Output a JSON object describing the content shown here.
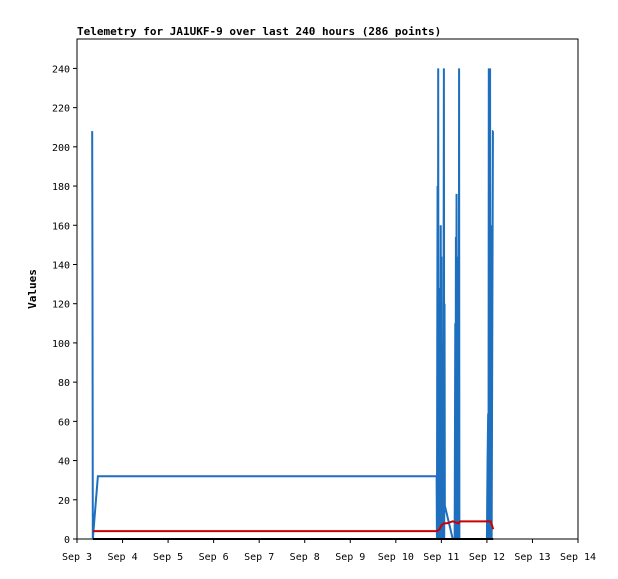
{
  "chart_data": {
    "type": "line",
    "title": "Telemetry for JA1UKF-9 over last 240 hours (286 points)",
    "xlabel": "",
    "ylabel": "Values",
    "xlim": [
      "Sep 3",
      "Sep 14"
    ],
    "ylim": [
      0,
      255
    ],
    "grid": false,
    "legend": "none",
    "x_ticks": [
      "Sep 3",
      "Sep 4",
      "Sep 5",
      "Sep 6",
      "Sep 7",
      "Sep 8",
      "Sep 9",
      "Sep 10",
      "Sep 11",
      "Sep 12",
      "Sep 13",
      "Sep 14"
    ],
    "y_ticks": [
      0,
      20,
      40,
      60,
      80,
      100,
      120,
      140,
      160,
      180,
      200,
      220,
      240
    ],
    "series": [
      {
        "color": "#1f6fbf",
        "points": [
          [
            "Sep 3 08:00",
            208
          ],
          [
            "Sep 3 08:10",
            128
          ],
          [
            "Sep 3 08:20",
            0
          ],
          [
            "Sep 3 11:00",
            32
          ],
          [
            "Sep 10 21:30",
            32
          ],
          [
            "Sep 10 21:40",
            0
          ],
          [
            "Sep 10 21:50",
            98
          ],
          [
            "Sep 10 22:00",
            180
          ],
          [
            "Sep 10 22:10",
            0
          ],
          [
            "Sep 10 22:20",
            240
          ],
          [
            "Sep 10 22:30",
            0
          ],
          [
            "Sep 10 22:40",
            128
          ],
          [
            "Sep 10 22:50",
            20
          ],
          [
            "Sep 10 23:00",
            120
          ],
          [
            "Sep 10 23:10",
            0
          ],
          [
            "Sep 10 23:20",
            100
          ],
          [
            "Sep 10 23:30",
            0
          ],
          [
            "Sep 10 23:40",
            160
          ],
          [
            "Sep 10 23:50",
            50
          ],
          [
            "Sep 11 00:00",
            144
          ],
          [
            "Sep 11 00:10",
            0
          ],
          [
            "Sep 11 00:30",
            100
          ],
          [
            "Sep 11 00:40",
            0
          ],
          [
            "Sep 11 00:50",
            96
          ],
          [
            "Sep 11 01:00",
            10
          ],
          [
            "Sep 11 01:20",
            240
          ],
          [
            "Sep 11 01:30",
            0
          ],
          [
            "Sep 11 01:40",
            120
          ],
          [
            "Sep 11 01:50",
            17
          ],
          [
            "Sep 11 06:00",
            0
          ],
          [
            "Sep 11 07:00",
            0
          ],
          [
            "Sep 11 07:20",
            110
          ],
          [
            "Sep 11 07:30",
            20
          ],
          [
            "Sep 11 07:40",
            154
          ],
          [
            "Sep 11 07:50",
            0
          ],
          [
            "Sep 11 08:00",
            176
          ],
          [
            "Sep 11 08:10",
            60
          ],
          [
            "Sep 11 08:20",
            144
          ],
          [
            "Sep 11 08:30",
            0
          ],
          [
            "Sep 11 08:40",
            96
          ],
          [
            "Sep 11 08:50",
            20
          ],
          [
            "Sep 11 09:00",
            90
          ],
          [
            "Sep 11 09:10",
            0
          ],
          [
            "Sep 11 09:20",
            240
          ],
          [
            "Sep 11 09:30",
            0
          ],
          [
            "Sep 12 00:00",
            0
          ],
          [
            "Sep 12 00:20",
            40
          ],
          [
            "Sep 12 00:40",
            64
          ],
          [
            "Sep 12 00:50",
            0
          ],
          [
            "Sep 12 01:00",
            240
          ],
          [
            "Sep 12 01:10",
            20
          ],
          [
            "Sep 12 01:20",
            112
          ],
          [
            "Sep 12 01:30",
            0
          ],
          [
            "Sep 12 01:40",
            240
          ],
          [
            "Sep 12 01:50",
            0
          ],
          [
            "Sep 12 02:00",
            160
          ],
          [
            "Sep 12 02:10",
            10
          ],
          [
            "Sep 12 02:20",
            70
          ],
          [
            "Sep 12 02:30",
            0
          ],
          [
            "Sep 12 03:10",
            208
          ],
          [
            "Sep 12 03:20",
            208
          ]
        ]
      },
      {
        "color": "#cc0000",
        "points": [
          [
            "Sep 3 08:20",
            4
          ],
          [
            "Sep 10 21:40",
            4
          ],
          [
            "Sep 10 23:00",
            5
          ],
          [
            "Sep 11 00:00",
            7
          ],
          [
            "Sep 11 01:30",
            8
          ],
          [
            "Sep 11 03:00",
            8
          ],
          [
            "Sep 11 06:00",
            9
          ],
          [
            "Sep 11 09:00",
            8
          ],
          [
            "Sep 11 10:00",
            9
          ],
          [
            "Sep 12 00:00",
            9
          ],
          [
            "Sep 12 02:00",
            9
          ],
          [
            "Sep 12 03:20",
            5
          ]
        ]
      },
      {
        "color": "#000000",
        "points": [
          [
            "Sep 3 08:20",
            0
          ],
          [
            "Sep 12 03:20",
            0
          ]
        ]
      }
    ]
  }
}
